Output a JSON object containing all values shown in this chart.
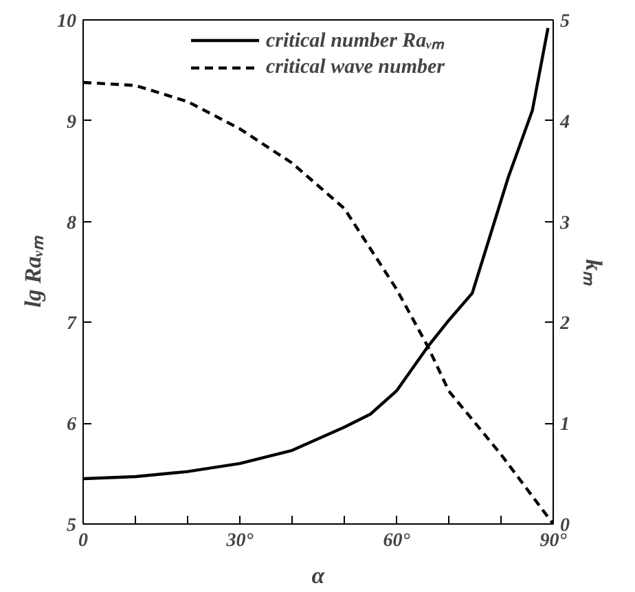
{
  "chart_data": {
    "type": "line",
    "xlabel": "α",
    "ylabel": "lg Raᵥₘ",
    "y2label": "kₘ",
    "x": [
      0,
      10,
      20,
      30,
      40,
      50,
      55,
      60,
      66,
      70,
      74.5,
      81.4,
      86,
      89
    ],
    "series": [
      {
        "name": "critical number Raᵥₘ",
        "color": "#000000",
        "line_style": "solid",
        "values": [
          5.45,
          5.47,
          5.52,
          5.6,
          5.73,
          5.96,
          6.09,
          6.32,
          6.76,
          7.02,
          7.29,
          8.44,
          9.1,
          9.92
        ]
      },
      {
        "name": "critical wave number",
        "color": "#000000",
        "line_style": "dashed",
        "axis": "y2",
        "x": [
          0,
          10,
          20,
          30,
          40,
          50,
          55,
          60,
          66,
          70,
          80,
          90
        ],
        "values": [
          4.38,
          4.35,
          4.19,
          3.92,
          3.58,
          3.13,
          2.73,
          2.33,
          1.76,
          1.32,
          0.69,
          0
        ]
      }
    ],
    "xlim": [
      0,
      90
    ],
    "ylim": [
      5,
      10
    ],
    "y2lim": [
      0,
      5
    ],
    "xticks": [
      0,
      {
        "value": 10,
        "label": null
      },
      {
        "value": 20,
        "label": null
      },
      {
        "value": 30,
        "label": "30°"
      },
      {
        "value": 40,
        "label": null
      },
      {
        "value": 50,
        "label": null
      },
      {
        "value": 60,
        "label": "60°"
      },
      {
        "value": 70,
        "label": null
      },
      {
        "value": 80,
        "label": null
      },
      {
        "value": 90,
        "label": "90°"
      }
    ],
    "yticks": [
      5,
      6,
      7,
      8,
      9,
      10
    ],
    "y2ticks": [
      0,
      1,
      2,
      3,
      4,
      5
    ],
    "grid": false,
    "legend": "top",
    "marker": "none"
  }
}
